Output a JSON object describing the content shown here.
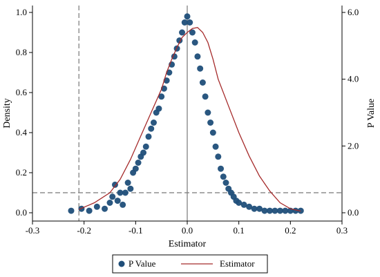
{
  "chart_data": {
    "type": "scatter",
    "xlabel": "Estimator",
    "ylabel_left": "Density",
    "ylabel_right": "P Value",
    "x_ticks": [
      "-0.3",
      "-0.2",
      "-0.1",
      "0.0",
      "0.1",
      "0.2",
      "0.3"
    ],
    "x_tick_values": [
      -0.3,
      -0.2,
      -0.1,
      0.0,
      0.1,
      0.2,
      0.3
    ],
    "y_left_ticks": [
      "0.0",
      "0.2",
      "0.4",
      "0.6",
      "0.8",
      "1.0"
    ],
    "y_left_tick_values": [
      0.0,
      0.2,
      0.4,
      0.6,
      0.8,
      1.0
    ],
    "y_right_ticks": [
      "0.0",
      "2.0",
      "4.0",
      "6.0"
    ],
    "y_right_tick_values": [
      0.0,
      2.0,
      4.0,
      6.0
    ],
    "xlim": [
      -0.3,
      0.3
    ],
    "ylim_left": [
      0.0,
      1.0
    ],
    "ylim_right": [
      0.0,
      6.0
    ],
    "reference_lines": {
      "vertical_dashed_x": -0.21,
      "vertical_solid_x": 0.0,
      "horizontal_dashed_y_left": 0.1
    },
    "series": [
      {
        "name": "P Value",
        "kind": "scatter",
        "axis": "left",
        "color": "#1f4e79",
        "x": [
          -0.225,
          -0.205,
          -0.19,
          -0.175,
          -0.16,
          -0.15,
          -0.145,
          -0.14,
          -0.135,
          -0.13,
          -0.125,
          -0.12,
          -0.115,
          -0.11,
          -0.105,
          -0.1,
          -0.095,
          -0.09,
          -0.085,
          -0.08,
          -0.075,
          -0.07,
          -0.065,
          -0.06,
          -0.055,
          -0.05,
          -0.045,
          -0.04,
          -0.035,
          -0.03,
          -0.025,
          -0.02,
          -0.015,
          -0.01,
          -0.005,
          0.0,
          0.005,
          0.01,
          0.015,
          0.02,
          0.025,
          0.03,
          0.035,
          0.04,
          0.045,
          0.05,
          0.055,
          0.06,
          0.065,
          0.07,
          0.075,
          0.08,
          0.085,
          0.09,
          0.095,
          0.1,
          0.11,
          0.12,
          0.13,
          0.14,
          0.15,
          0.16,
          0.17,
          0.18,
          0.19,
          0.2,
          0.21,
          0.22
        ],
        "y": [
          0.01,
          0.02,
          0.01,
          0.03,
          0.02,
          0.05,
          0.08,
          0.14,
          0.06,
          0.1,
          0.04,
          0.1,
          0.15,
          0.12,
          0.2,
          0.22,
          0.25,
          0.28,
          0.3,
          0.33,
          0.38,
          0.42,
          0.45,
          0.5,
          0.52,
          0.58,
          0.62,
          0.66,
          0.7,
          0.74,
          0.78,
          0.82,
          0.86,
          0.9,
          0.95,
          0.98,
          0.95,
          0.9,
          0.85,
          0.78,
          0.72,
          0.65,
          0.58,
          0.5,
          0.45,
          0.4,
          0.33,
          0.28,
          0.22,
          0.18,
          0.15,
          0.12,
          0.1,
          0.08,
          0.06,
          0.05,
          0.04,
          0.03,
          0.02,
          0.02,
          0.01,
          0.01,
          0.01,
          0.01,
          0.01,
          0.01,
          0.01,
          0.01
        ]
      },
      {
        "name": "Estimator",
        "kind": "line",
        "axis": "right",
        "color": "#a52a2a",
        "x": [
          -0.21,
          -0.18,
          -0.15,
          -0.13,
          -0.11,
          -0.09,
          -0.07,
          -0.05,
          -0.04,
          -0.03,
          -0.02,
          -0.01,
          0.0,
          0.01,
          0.02,
          0.03,
          0.04,
          0.05,
          0.06,
          0.08,
          0.1,
          0.12,
          0.14,
          0.16,
          0.18,
          0.2,
          0.22
        ],
        "y": [
          0.1,
          0.3,
          0.6,
          1.0,
          1.6,
          2.3,
          3.0,
          3.7,
          4.2,
          4.6,
          4.95,
          5.25,
          5.4,
          5.52,
          5.55,
          5.4,
          5.1,
          4.6,
          4.0,
          3.2,
          2.4,
          1.7,
          1.1,
          0.65,
          0.3,
          0.12,
          0.05
        ]
      }
    ],
    "legend": {
      "position": "bottom-center",
      "items": [
        {
          "label": "P Value",
          "symbol": "marker",
          "color": "#1f4e79"
        },
        {
          "label": "Estimator",
          "symbol": "line",
          "color": "#a52a2a"
        }
      ]
    },
    "grid": false
  }
}
